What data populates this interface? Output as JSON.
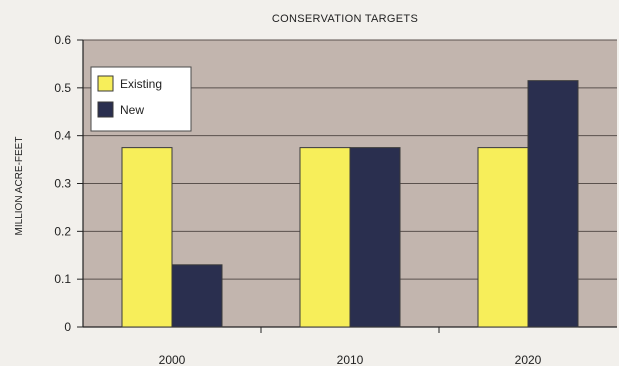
{
  "chart_data": {
    "type": "bar",
    "title": "CONSERVATION TARGETS",
    "xlabel": "",
    "ylabel": "MILLION ACRE-FEET",
    "categories": [
      "2000",
      "2010",
      "2020"
    ],
    "ylim": [
      0,
      0.6
    ],
    "yticks": [
      "0",
      "0.1",
      "0.2",
      "0.3",
      "0.4",
      "0.5",
      "0.6"
    ],
    "grid": true,
    "legend_position": "top-left",
    "series": [
      {
        "name": "Existing",
        "color": "#f7ee5a",
        "values": [
          0.375,
          0.375,
          0.375
        ]
      },
      {
        "name": "New",
        "color": "#2a2f4f",
        "values": [
          0.13,
          0.375,
          0.515
        ]
      }
    ],
    "plot_background": "#c2b5ae"
  }
}
